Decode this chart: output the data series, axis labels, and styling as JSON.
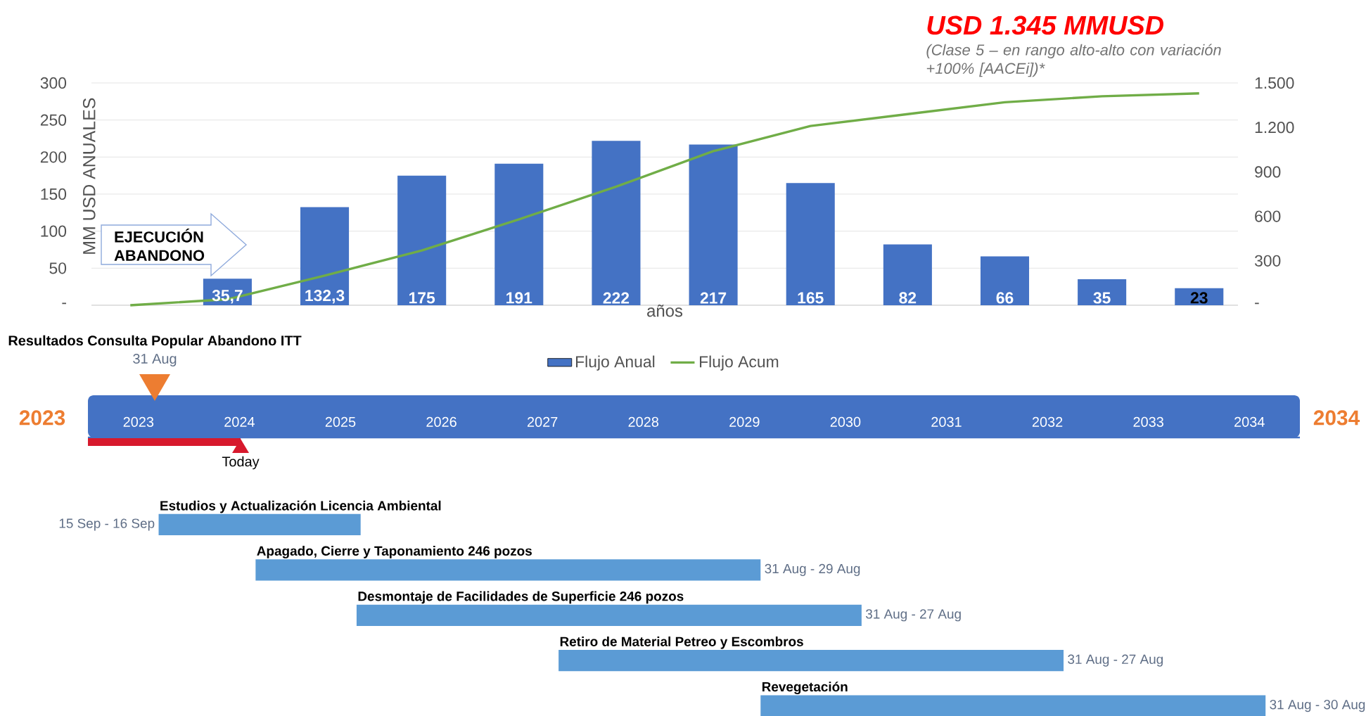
{
  "chart_data": [
    {
      "type": "bar",
      "title": "USD 1.345 MMUSD",
      "subtitle": "(Clase 5 – en rango alto-alto con variación  +100% [AACEi])*",
      "xlabel": "años",
      "ylabel": "MM USD   ANUALES",
      "annotations": [
        "EJECUCIÓN ABANDONO"
      ],
      "categories": [
        null,
        null,
        null,
        null,
        null,
        null,
        null,
        null,
        null,
        null,
        null,
        null
      ],
      "series": [
        {
          "name": "Flujo Anual",
          "color": "#4472c4",
          "values": [
            null,
            35.7,
            132.3,
            175,
            191,
            222,
            217,
            165,
            82,
            66,
            35,
            23
          ],
          "value_labels": [
            null,
            "35,7",
            "132,3",
            "175",
            "191",
            "222",
            "217",
            "165",
            "82",
            "66",
            "35",
            "23"
          ]
        },
        {
          "name": "Flujo Acum",
          "type": "line",
          "axis": "y2",
          "color": "#70ad47",
          "values": [
            0,
            40,
            200,
            370,
            580,
            800,
            1040,
            1210,
            1290,
            1370,
            1410,
            1430
          ]
        }
      ],
      "ylim": [
        0,
        300
      ],
      "yticks": [
        {
          "value": 0,
          "label": "-"
        },
        50,
        100,
        150,
        200,
        250,
        300
      ],
      "y2lim": [
        0,
        1500
      ],
      "y2ticks": [
        {
          "value": 0,
          "label": "-"
        },
        300,
        600,
        900,
        {
          "value": 1200,
          "label": "1.200"
        },
        {
          "value": 1500,
          "label": "1.500"
        }
      ],
      "grid": "y",
      "legend": "bottom",
      "marker": "none"
    },
    {
      "type": "bar",
      "orientation": "horizontal",
      "color": "#5b9bd5",
      "categories": [
        "Estudios y Actualización Licencia Ambiental",
        "Apagado, Cierre y Taponamiento 246 pozos",
        "Desmontaje de Facilidades de Superficie 246 pozos",
        "Retiro de Material Petreo y Escombros",
        "Revegetación"
      ],
      "base": [
        2023.7,
        2024.66,
        2025.66,
        2027.66,
        2029.66
      ],
      "values": [
        2,
        5,
        5,
        5,
        5
      ],
      "xlim": [
        2023,
        2035
      ],
      "xticks": [
        {
          "value": 2023.5,
          "label": "2023"
        },
        {
          "value": 2024.5,
          "label": "2024"
        },
        {
          "value": 2025.5,
          "label": "2025"
        },
        {
          "value": 2026.5,
          "label": "2026"
        },
        {
          "value": 2027.5,
          "label": "2027"
        },
        {
          "value": 2028.5,
          "label": "2028"
        },
        {
          "value": 2029.5,
          "label": "2029"
        },
        {
          "value": 2030.5,
          "label": "2030"
        },
        {
          "value": 2031.5,
          "label": "2031"
        },
        {
          "value": 2032.5,
          "label": "2032"
        },
        {
          "value": 2033.5,
          "label": "2033"
        },
        {
          "value": 2034.5,
          "label": "2034"
        }
      ],
      "annotations": [
        "Resultados Consulta Popular Abandono ITT",
        "31 Aug",
        "2023",
        "2034",
        "Today",
        {
          "text": "15 Sep - 16 Sep",
          "x": 2023.7,
          "y": "Estudios y Actualización Licencia Ambiental"
        },
        {
          "text": "31 Aug - 29 Aug",
          "x": 2029.66,
          "y": "Apagado, Cierre y Taponamiento 246 pozos"
        },
        {
          "text": "31 Aug - 27 Aug",
          "x": 2030.66,
          "y": "Desmontaje de Facilidades de Superficie 246 pozos"
        },
        {
          "text": "31 Aug - 27 Aug",
          "x": 2032.66,
          "y": "Retiro de Material Petreo y Escombros"
        },
        {
          "text": "31 Aug - 30 Aug",
          "x": 2034.66,
          "y": "Revegetación"
        }
      ]
    }
  ]
}
